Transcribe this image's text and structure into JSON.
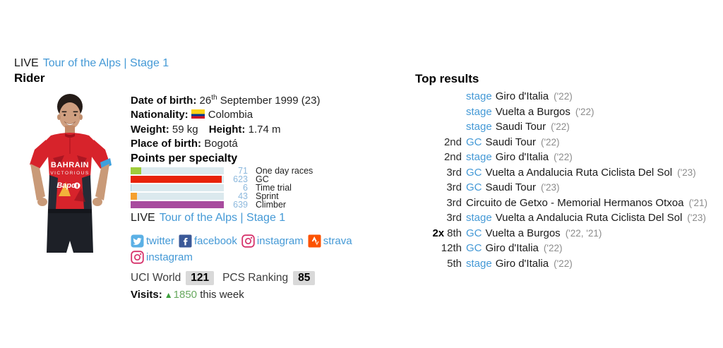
{
  "colors": {
    "link_blue": "#4499d6",
    "value_blue": "#8cb8dd",
    "badge_bg": "#d9d9d9",
    "visits_green": "#68a95f",
    "track": "#dbe9ee"
  },
  "header": {
    "live_label": "LIVE",
    "live_link": "Tour of the Alps | Stage 1",
    "rider_title": "Rider"
  },
  "rider": {
    "photo": {
      "team_line1": "BAHRAIN",
      "team_line2": "VICTORIOUS",
      "sponsor": "Bapco"
    },
    "dob_label": "Date of birth:",
    "dob_day": "26",
    "dob_suffix": "th",
    "dob_rest": "September 1999 (23)",
    "nationality_label": "Nationality:",
    "nationality": "Colombia",
    "weight_label": "Weight:",
    "weight_value": "59 kg",
    "height_label": "Height:",
    "height_value": "1.74 m",
    "pob_label": "Place of birth:",
    "pob_value": "Bogotá"
  },
  "chart_data": {
    "type": "bar",
    "title": "Points per specialty",
    "categories": [
      "One day races",
      "GC",
      "Time trial",
      "Sprint",
      "Climber"
    ],
    "values": [
      71,
      623,
      6,
      43,
      639
    ],
    "bar_colors": [
      "#9fcc3b",
      "#e8230b",
      "#aacfdd",
      "#f5a02e",
      "#a84b9e"
    ],
    "xlim": [
      0,
      639
    ],
    "orientation": "horizontal",
    "track_color": "#dbe9ee"
  },
  "live2": {
    "live_label": "LIVE",
    "live_link": "Tour of the Alps | Stage 1"
  },
  "social": [
    {
      "icon": "twitter-icon",
      "label": "twitter"
    },
    {
      "icon": "facebook-icon",
      "label": "facebook"
    },
    {
      "icon": "instagram-icon",
      "label": "instagram"
    },
    {
      "icon": "strava-icon",
      "label": "strava"
    },
    {
      "icon": "instagram-icon",
      "label": "instagram"
    }
  ],
  "rankings": {
    "uci_label": "UCI World",
    "uci_value": "121",
    "pcs_label": "PCS Ranking",
    "pcs_value": "85"
  },
  "visits": {
    "label": "Visits:",
    "arrow": "▲",
    "count": "1850",
    "suffix": "this week"
  },
  "top_results": {
    "title": "Top results",
    "rows": [
      {
        "prefix": "",
        "rank": "",
        "class": "stage",
        "race": "Giro d'Italia",
        "year": "('22)"
      },
      {
        "prefix": "",
        "rank": "",
        "class": "stage",
        "race": "Vuelta a Burgos",
        "year": "('22)"
      },
      {
        "prefix": "",
        "rank": "",
        "class": "stage",
        "race": "Saudi Tour",
        "year": "('22)"
      },
      {
        "prefix": "",
        "rank": "2nd",
        "class": "GC",
        "race": "Saudi Tour",
        "year": "('22)"
      },
      {
        "prefix": "",
        "rank": "2nd",
        "class": "stage",
        "race": "Giro d'Italia",
        "year": "('22)"
      },
      {
        "prefix": "",
        "rank": "3rd",
        "class": "GC",
        "race": "Vuelta a Andalucia Ruta Ciclista Del Sol",
        "year": "('23)"
      },
      {
        "prefix": "",
        "rank": "3rd",
        "class": "GC",
        "race": "Saudi Tour",
        "year": "('23)"
      },
      {
        "prefix": "",
        "rank": "3rd",
        "class": "",
        "race": "Circuito de Getxo - Memorial Hermanos Otxoa",
        "year": "('21)"
      },
      {
        "prefix": "",
        "rank": "3rd",
        "class": "stage",
        "race": "Vuelta a Andalucia Ruta Ciclista Del Sol",
        "year": "('23)"
      },
      {
        "prefix": "2x",
        "rank": "8th",
        "class": "GC",
        "race": "Vuelta a Burgos",
        "year": "('22, '21)"
      },
      {
        "prefix": "",
        "rank": "12th",
        "class": "GC",
        "race": "Giro d'Italia",
        "year": "('22)"
      },
      {
        "prefix": "",
        "rank": "5th",
        "class": "stage",
        "race": "Giro d'Italia",
        "year": "('22)"
      }
    ]
  }
}
